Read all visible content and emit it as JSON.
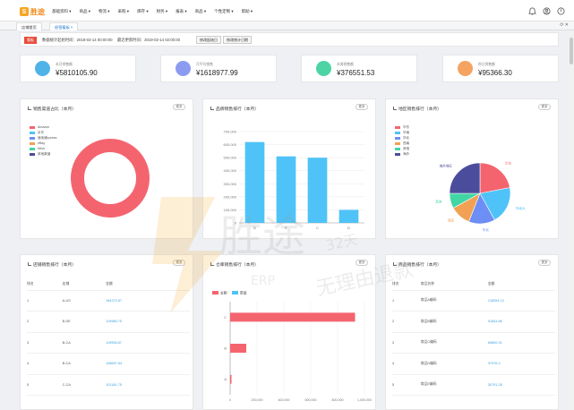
{
  "app": {
    "logo_text": "胜途"
  },
  "menu": [
    "基础资料 ▾",
    "商品 ▾",
    "物流 ▾",
    "采购 ▾",
    "库存 ▾",
    "财务 ▾",
    "报表 ▾",
    "商品 ▾",
    "个性定制 ▾",
    "帮助 ▾"
  ],
  "tabs": [
    {
      "label": "店铺首页"
    },
    {
      "label": "经营看板 ×"
    }
  ],
  "banner": {
    "tag": "看板",
    "update_text": "数据统计起始时间：2018-03-14 00:00:00",
    "latest_text": "最近更新时间：2019-02-14 02:00:00",
    "btn1": "修改起始日",
    "btn2": "修改统计日期"
  },
  "stats": [
    {
      "label": "本月销售额",
      "value": "¥5810105.90",
      "color": "#4fb3e8"
    },
    {
      "label": "月平均销售",
      "value": "¥1618977.99",
      "color": "#8b9cf0"
    },
    {
      "label": "本周销售额",
      "value": "¥376551.53",
      "color": "#4dd4a4"
    },
    {
      "label": "昨日销售额",
      "value": "¥95366.30",
      "color": "#f4a460"
    }
  ],
  "cards": {
    "platform": {
      "title": "销售渠道占比（本月）",
      "more": "更多"
    },
    "brand": {
      "title": "品牌销售排行（本月）",
      "more": "更多"
    },
    "region": {
      "title": "地区销售排行（本月）",
      "more": "更多"
    },
    "shop": {
      "title": "店铺销售排行（本月）",
      "more": "更多"
    },
    "warehouse": {
      "title": "仓库销售排行（本月）",
      "more": "更多"
    },
    "product": {
      "title": "商品销售排行（本月）",
      "more": "更多"
    }
  },
  "chart_data": [
    {
      "type": "pie",
      "legend": [
        {
          "name": "Amazon",
          "color": "#f4646f"
        },
        {
          "name": "京东",
          "color": "#4fc3f7"
        },
        {
          "name": "速卖通xpress",
          "color": "#6c8ef5"
        },
        {
          "name": "eBay",
          "color": "#f2a154"
        },
        {
          "name": "Wish",
          "color": "#42d6a4"
        },
        {
          "name": "其他渠道",
          "color": "#4b4d9c"
        }
      ],
      "values": [
        100,
        0,
        0,
        0,
        0,
        0
      ]
    },
    {
      "type": "bar",
      "categories": [
        "B",
        "E",
        "C",
        "D"
      ],
      "values": [
        620000,
        510000,
        500000,
        100000
      ],
      "ylim": [
        0,
        700000
      ],
      "yticks": [
        "0",
        "100,000",
        "200,000",
        "300,000",
        "400,000",
        "500,000",
        "600,000",
        "700,000"
      ],
      "color": "#4fc3f7"
    },
    {
      "type": "pie",
      "legend": [
        {
          "name": "华东",
          "color": "#f4646f"
        },
        {
          "name": "华南",
          "color": "#4fc3f7"
        },
        {
          "name": "华北",
          "color": "#6c8ef5"
        },
        {
          "name": "西南",
          "color": "#f2a154"
        },
        {
          "name": "其他",
          "color": "#42d6a4"
        },
        {
          "name": "海外",
          "color": "#4b4d9c"
        }
      ],
      "values": [
        22,
        20,
        14,
        11,
        8,
        25
      ],
      "slice_labels": [
        "华东",
        "华南大",
        "华北",
        "西南",
        "其他",
        "海外地区"
      ]
    },
    {
      "type": "bar",
      "orientation": "horizontal",
      "categories": [
        "A",
        "B",
        "C"
      ],
      "series": [
        {
          "name": "金额",
          "values": [
            10000,
            120000,
            930000
          ],
          "color": "#f4646f"
        },
        {
          "name": "数量",
          "values": [
            0,
            0,
            0
          ],
          "color": "#4fc3f7"
        }
      ],
      "xlim": [
        0,
        1000000
      ],
      "xticks": [
        "0",
        "200,000",
        "400,000",
        "600,000",
        "800,000",
        "1,000,000"
      ]
    }
  ],
  "shop_table": {
    "headers": [
      "排名",
      "店铺",
      "金额"
    ],
    "rows": [
      [
        "1",
        "A-US",
        "184372.87"
      ],
      [
        "2",
        "B-DE",
        "119986.75"
      ],
      [
        "3",
        "B-CA",
        "119956.87"
      ],
      [
        "4",
        "B-CA",
        "108697.64"
      ],
      [
        "5",
        "C-CA",
        "101181.75"
      ]
    ]
  },
  "product_table": {
    "headers": [
      "排名",
      "商品名称",
      "金额"
    ],
    "rows": [
      [
        "1",
        "商品A编码",
        "218394.13"
      ],
      [
        "2",
        "商品B编码",
        "91843.86"
      ],
      [
        "3",
        "商品C编码",
        "69800.91"
      ],
      [
        "4",
        "商品D编码",
        "37976.3"
      ],
      [
        "5",
        "商品E编码",
        "30791.28"
      ]
    ]
  },
  "watermark": {
    "brand": "胜途",
    "erp": "ERP",
    "tag1": "32天",
    "tag2": "无理由退款"
  }
}
